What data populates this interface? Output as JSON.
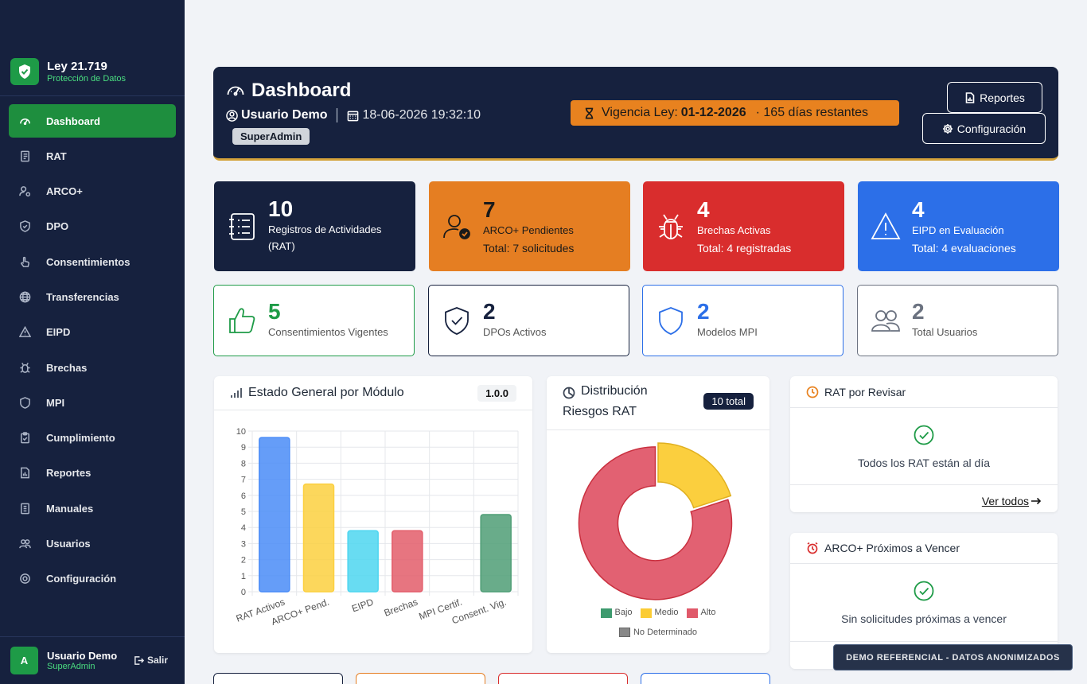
{
  "sidebar": {
    "brand_title": "Ley 21.719",
    "brand_sub": "Protección de Datos",
    "items": [
      {
        "label": "Dashboard",
        "icon": "speedometer-icon"
      },
      {
        "label": "RAT",
        "icon": "journal-icon"
      },
      {
        "label": "ARCO+",
        "icon": "person-gear-icon"
      },
      {
        "label": "DPO",
        "icon": "shield-check-icon"
      },
      {
        "label": "Consentimientos",
        "icon": "hand-index-icon"
      },
      {
        "label": "Transferencias",
        "icon": "globe-icon"
      },
      {
        "label": "EIPD",
        "icon": "warning-icon"
      },
      {
        "label": "Brechas",
        "icon": "bug-icon"
      },
      {
        "label": "MPI",
        "icon": "shield-icon"
      },
      {
        "label": "Cumplimiento",
        "icon": "clipboard-check-icon"
      },
      {
        "label": "Reportes",
        "icon": "file-chart-icon"
      },
      {
        "label": "Manuales",
        "icon": "book-icon"
      },
      {
        "label": "Usuarios",
        "icon": "people-icon"
      },
      {
        "label": "Configuración",
        "icon": "gear-icon"
      }
    ],
    "user_initial": "A",
    "user_name": "Usuario Demo",
    "user_role": "SuperAdmin",
    "logout_label": "Salir"
  },
  "header": {
    "title": "Dashboard",
    "user": "Usuario Demo",
    "datetime": "18-06-2026 19:32:10",
    "role": "SuperAdmin",
    "vigencia_label": "Vigencia Ley:",
    "vigencia_date": "01-12-2026",
    "vigencia_rest": "· 165 días restantes",
    "reportes_label": "Reportes",
    "config_label": "Configuración"
  },
  "stats_row1": [
    {
      "value": "10",
      "label": "Registros de Actividades (RAT)",
      "sub": "",
      "color": "#16213e",
      "icon": "journal-list-icon"
    },
    {
      "value": "7",
      "label": "ARCO+ Pendientes",
      "sub": "Total: 7 solicitudes",
      "color": "#e57e22",
      "icon": "person-check-icon"
    },
    {
      "value": "4",
      "label": "Brechas Activas",
      "sub": "Total: 4 registradas",
      "color": "#d92d2d",
      "icon": "bug-icon"
    },
    {
      "value": "4",
      "label": "EIPD en Evaluación",
      "sub": "Total: 4 evaluaciones",
      "color": "#2c6fe8",
      "icon": "warning-triangle-icon"
    }
  ],
  "stats_row2": [
    {
      "value": "5",
      "label": "Consentimientos Vigentes",
      "color": "#1e9b47",
      "icon": "thumbs-up-icon"
    },
    {
      "value": "2",
      "label": "DPOs Activos",
      "color": "#111827",
      "icon": "shield-check-icon"
    },
    {
      "value": "2",
      "label": "Modelos MPI",
      "color": "#2c6fe8",
      "icon": "shield-icon"
    },
    {
      "value": "2",
      "label": "Total Usuarios",
      "color": "#6b7280",
      "icon": "people-icon"
    }
  ],
  "bar_panel": {
    "title": "Estado General por Módulo",
    "version": "1.0.0"
  },
  "pie_panel": {
    "title_line1": "Distribución",
    "title_line2": "Riesgos RAT",
    "total_badge": "10 total"
  },
  "rat_panel": {
    "title": "RAT por Revisar",
    "message": "Todos los RAT están al día",
    "link": "Ver todos"
  },
  "arco_panel": {
    "title": "ARCO+ Próximos a Vencer",
    "message": "Sin solicitudes próximas a vencer"
  },
  "demo_badge": "DEMO REFERENCIAL - DATOS ANONIMIZADOS",
  "chart_data": [
    {
      "type": "bar",
      "categories": [
        "RAT Activos",
        "ARCO+ Pend.",
        "EIPD",
        "Brechas",
        "MPI Certif.",
        "Consent. Vig."
      ],
      "values": [
        9.6,
        6.7,
        3.8,
        3.8,
        0,
        4.8
      ],
      "colors": [
        "#4a8cf7",
        "#fcd03f",
        "#4dd6f0",
        "#e35d6a",
        "#9ca3af",
        "#4f9e76"
      ],
      "ylim": [
        0,
        10
      ],
      "yticks": [
        "0",
        "1",
        "2",
        "3",
        "4",
        "5",
        "6",
        "7",
        "8",
        "9",
        "10"
      ],
      "grid": true
    },
    {
      "type": "pie",
      "categories": [
        "Bajo",
        "Medio",
        "Alto",
        "No Determinado"
      ],
      "values": [
        0,
        2,
        8,
        0
      ],
      "colors": [
        "#3d9a6e",
        "#fbcc34",
        "#e0596a",
        "#888888"
      ],
      "legend": "bottom"
    }
  ]
}
